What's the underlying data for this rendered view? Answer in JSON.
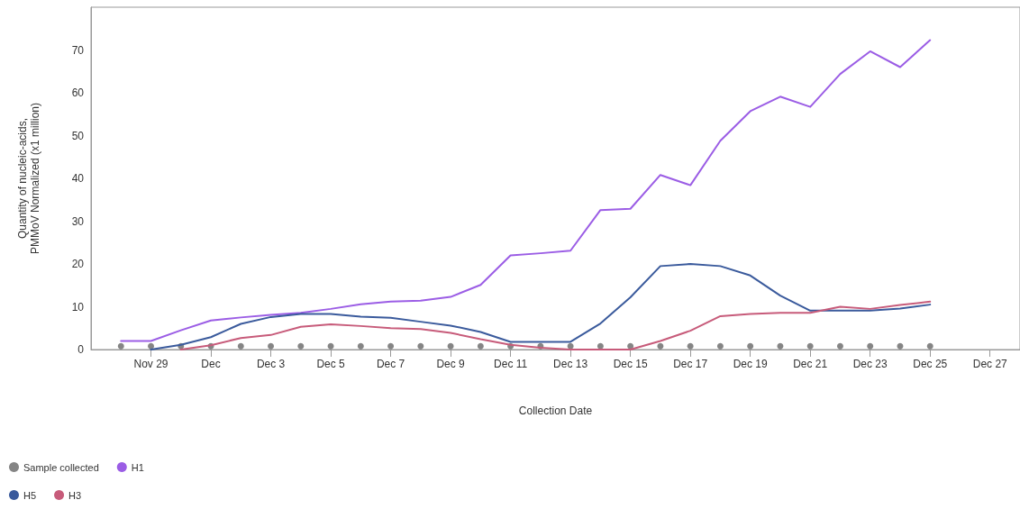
{
  "chart_data": {
    "type": "line",
    "xlabel": "Collection Date",
    "ylabel": "Quantity of nucleic-acids,\nPMMoV Normalized (x1 million)",
    "x": [
      "--11-28",
      "--11-29",
      "--11-30",
      "--12-01",
      "--12-02",
      "--12-03",
      "--12-04",
      "--12-05",
      "--12-06",
      "--12-07",
      "--12-08",
      "--12-09",
      "--12-10",
      "--12-11",
      "--12-12",
      "--12-13",
      "--12-14",
      "--12-15",
      "--12-16",
      "--12-17",
      "--12-18",
      "--12-19",
      "--12-20",
      "--12-21",
      "--12-22",
      "--12-23",
      "--12-24",
      "--12-25"
    ],
    "series": [
      {
        "name": "Sample collected",
        "type": "scatter",
        "marker": "circle",
        "color": "#666666",
        "values": [
          0.8,
          0.8,
          0.8,
          0.8,
          0.8,
          0.8,
          0.8,
          0.8,
          0.8,
          0.8,
          0.8,
          0.8,
          0.8,
          0.8,
          0.8,
          0.8,
          0.8,
          0.8,
          0.8,
          0.8,
          0.8,
          0.8,
          0.8,
          0.8,
          0.8,
          0.8,
          0.8,
          0.8
        ]
      },
      {
        "name": "H1",
        "color": "#9b5de5",
        "values": [
          2.0,
          2.0,
          4.5,
          6.8,
          7.5,
          8.1,
          8.6,
          9.5,
          10.6,
          11.2,
          11.4,
          12.3,
          15.1,
          22.0,
          22.5,
          23.1,
          32.6,
          32.9,
          40.8,
          38.4,
          48.8,
          55.7,
          59.1,
          56.7,
          64.4,
          69.7,
          66.0,
          72.3
        ]
      },
      {
        "name": "H5",
        "color": "#3a5a9c",
        "values": [
          null,
          0,
          1.1,
          2.9,
          6.0,
          7.6,
          8.3,
          8.3,
          7.7,
          7.4,
          6.5,
          5.6,
          4.1,
          1.8,
          1.8,
          1.8,
          6.1,
          12.2,
          19.5,
          20.0,
          19.5,
          17.3,
          12.6,
          9.1,
          9.1,
          9.1,
          9.6,
          10.5
        ]
      },
      {
        "name": "H3",
        "color": "#c75b7a",
        "values": [
          null,
          null,
          0,
          1.0,
          2.7,
          3.4,
          5.3,
          5.9,
          5.5,
          5.0,
          4.8,
          3.9,
          2.4,
          1.1,
          0.4,
          0,
          0,
          0,
          2.0,
          4.4,
          7.8,
          8.3,
          8.6,
          8.6,
          10.0,
          9.5,
          10.4,
          11.2
        ]
      }
    ],
    "marker": "none",
    "line_style": "solid",
    "grid": false,
    "legend": "bottom left",
    "xlim": [
      "--11-27",
      "--12-28"
    ],
    "xticks": [
      {
        "value": "--11-29",
        "label": "Nov 29"
      },
      {
        "value": "--12-01",
        "label": "Dec"
      },
      {
        "value": "--12-03",
        "label": "Dec 3"
      },
      {
        "value": "--12-05",
        "label": "Dec 5"
      },
      {
        "value": "--12-07",
        "label": "Dec 7"
      },
      {
        "value": "--12-09",
        "label": "Dec 9"
      },
      {
        "value": "--12-11",
        "label": "Dec 11"
      },
      {
        "value": "--12-13",
        "label": "Dec 13"
      },
      {
        "value": "--12-15",
        "label": "Dec 15"
      },
      {
        "value": "--12-17",
        "label": "Dec 17"
      },
      {
        "value": "--12-19",
        "label": "Dec 19"
      },
      {
        "value": "--12-21",
        "label": "Dec 21"
      },
      {
        "value": "--12-23",
        "label": "Dec 23"
      },
      {
        "value": "--12-25",
        "label": "Dec 25"
      },
      {
        "value": "--12-27",
        "label": "Dec 27"
      }
    ],
    "ylim": [
      0,
      80
    ],
    "yticks": [
      0,
      10,
      20,
      30,
      40,
      50,
      60,
      70
    ]
  }
}
